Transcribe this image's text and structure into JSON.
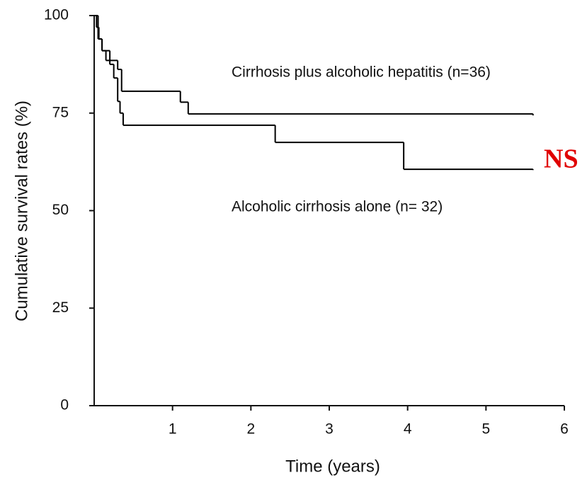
{
  "chart_data": {
    "type": "step",
    "x_label": "Time (years)",
    "y_label": "Cumulative survival rates (%)",
    "annotation": "NS",
    "annotation_color": "#e00000",
    "xlim": [
      0,
      6
    ],
    "xticks": [
      1,
      2,
      3,
      4,
      5,
      6
    ],
    "ylim": [
      0,
      100
    ],
    "yticks": [
      0,
      25,
      50,
      75,
      100
    ],
    "grid": false,
    "series": [
      {
        "name": "Cirrhosis plus alcoholic hepatitis (n=36)",
        "color": "#000000",
        "x": [
          0,
          0.03,
          0.06,
          0.1,
          0.15,
          0.3,
          0.35,
          1.1,
          1.2,
          5.6
        ],
        "values": [
          100,
          97,
          94,
          91,
          88.5,
          86.2,
          80.6,
          77.8,
          74.8,
          74.4
        ]
      },
      {
        "name": "Alcoholic cirrhosis alone (n= 32)",
        "color": "#000000",
        "x": [
          0,
          0.05,
          0.1,
          0.2,
          0.25,
          0.3,
          0.33,
          0.37,
          2.31,
          3.95,
          5.6
        ],
        "values": [
          100,
          94,
          91,
          87.5,
          84,
          78,
          75,
          71.9,
          67.5,
          60.6,
          60.4
        ]
      }
    ]
  }
}
